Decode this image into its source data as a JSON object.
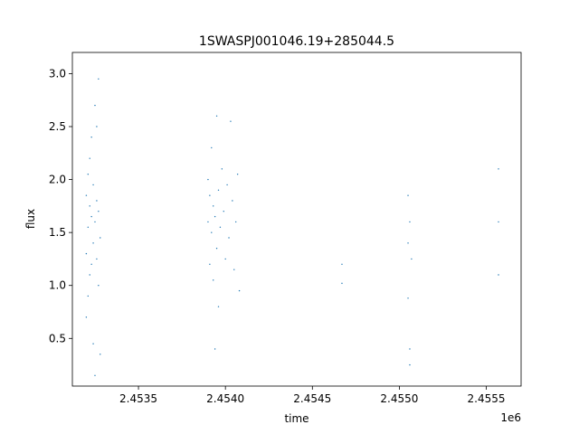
{
  "chart_data": {
    "type": "scatter",
    "title": "1SWASPJ001046.19+285044.5",
    "xlabel": "time",
    "ylabel": "flux",
    "x_offset_label": "1e6",
    "xlim": [
      2.45312,
      2.4557
    ],
    "ylim": [
      0.05,
      3.2
    ],
    "x_ticks": [
      2.4535,
      2.454,
      2.4545,
      2.455,
      2.4555
    ],
    "x_tick_labels": [
      "2.4535",
      "2.4540",
      "2.4545",
      "2.4550",
      "2.4555"
    ],
    "y_ticks": [
      0.5,
      1.0,
      1.5,
      2.0,
      2.5,
      3.0
    ],
    "y_tick_labels": [
      "0.5",
      "1.0",
      "1.5",
      "2.0",
      "2.5",
      "3.0"
    ],
    "grid": false,
    "marker_color": "#1f77b4",
    "series": [
      {
        "values": {
          "x": [
            2.4532,
            2.4532,
            2.4532,
            2.45321,
            2.45321,
            2.45321,
            2.45322,
            2.45322,
            2.45322,
            2.45323,
            2.45323,
            2.45323,
            2.45324,
            2.45324,
            2.45324,
            2.45325,
            2.45325,
            2.45325,
            2.45326,
            2.45326,
            2.45326,
            2.45327,
            2.45327,
            2.45327,
            2.45328,
            2.45328,
            2.4539,
            2.4539,
            2.45391,
            2.45391,
            2.45392,
            2.45392,
            2.45393,
            2.45393,
            2.45394,
            2.45394,
            2.45395,
            2.45395,
            2.45396,
            2.45396,
            2.45397,
            2.45398,
            2.45399,
            2.454,
            2.45401,
            2.45402,
            2.45403,
            2.45404,
            2.45405,
            2.45406,
            2.45407,
            2.45408,
            2.45467,
            2.45467,
            2.45505,
            2.45505,
            2.45505,
            2.45506,
            2.45506,
            2.45506,
            2.45507,
            2.45557,
            2.45557,
            2.45557
          ],
          "y": [
            0.7,
            1.3,
            1.85,
            0.9,
            1.55,
            2.05,
            1.1,
            1.75,
            2.2,
            1.2,
            1.65,
            2.4,
            0.45,
            1.4,
            1.95,
            0.15,
            1.6,
            2.7,
            1.25,
            1.8,
            2.5,
            1.0,
            1.7,
            2.95,
            0.35,
            1.45,
            1.6,
            2.0,
            1.2,
            1.85,
            1.5,
            2.3,
            1.05,
            1.75,
            0.4,
            1.65,
            1.35,
            2.6,
            1.9,
            0.8,
            1.55,
            2.1,
            1.7,
            1.25,
            1.95,
            1.45,
            2.55,
            1.8,
            1.15,
            1.6,
            2.05,
            0.95,
            1.2,
            1.02,
            1.85,
            1.4,
            0.88,
            0.25,
            1.6,
            0.4,
            1.25,
            1.1,
            1.6,
            2.1
          ]
        }
      }
    ]
  }
}
